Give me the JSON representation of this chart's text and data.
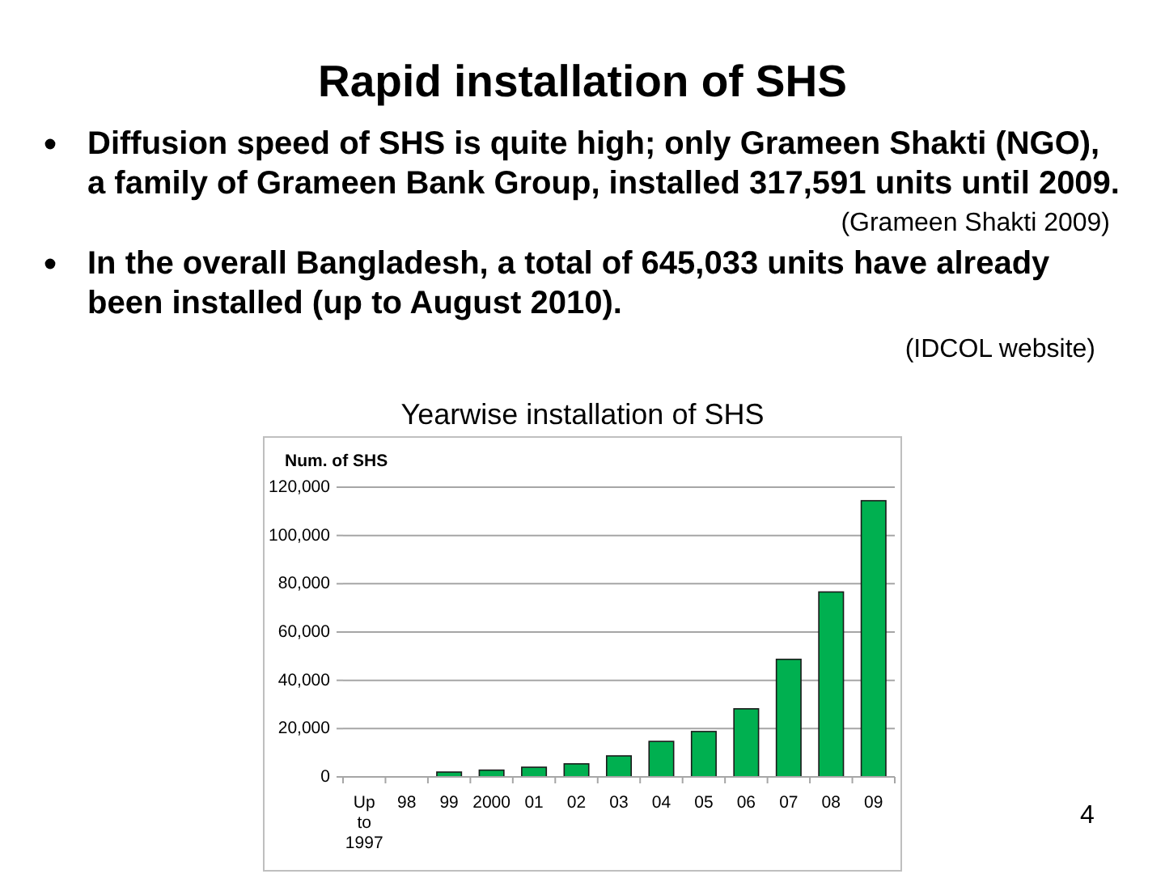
{
  "chart_data": {
    "type": "bar",
    "title": "Rapid installation of SHS",
    "subtitle": "Yearwise installation of SHS",
    "ylabel": "Num. of SHS",
    "categories": [
      "Up to 1997",
      "98",
      "99",
      "2000",
      "01",
      "02",
      "03",
      "04",
      "05",
      "06",
      "07",
      "08",
      "09"
    ],
    "values": [
      0,
      0,
      2000,
      2800,
      4000,
      5400,
      8700,
      14700,
      18800,
      28200,
      48700,
      76600,
      114400
    ],
    "color": "#00b050",
    "ylim": [
      0,
      120000
    ],
    "yticks": [
      0,
      {
        "value": 20000,
        "label": "20,000"
      },
      {
        "value": 40000,
        "label": "40,000"
      },
      {
        "value": 60000,
        "label": "60,000"
      },
      {
        "value": 80000,
        "label": "80,000"
      },
      {
        "value": 100000,
        "label": "100,000"
      },
      {
        "value": 120000,
        "label": "120,000"
      }
    ],
    "grid": "y",
    "annotations": [
      "Diffusion speed of SHS is quite high; only Grameen Shakti (NGO), a family of Grameen Bank Group, installed 317,591 units until 2009.",
      "(Grameen Shakti 2009)",
      "In the overall Bangladesh, a total of 645,033 units have already been installed (up to August 2010).",
      "(IDCOL website)",
      "4"
    ]
  }
}
